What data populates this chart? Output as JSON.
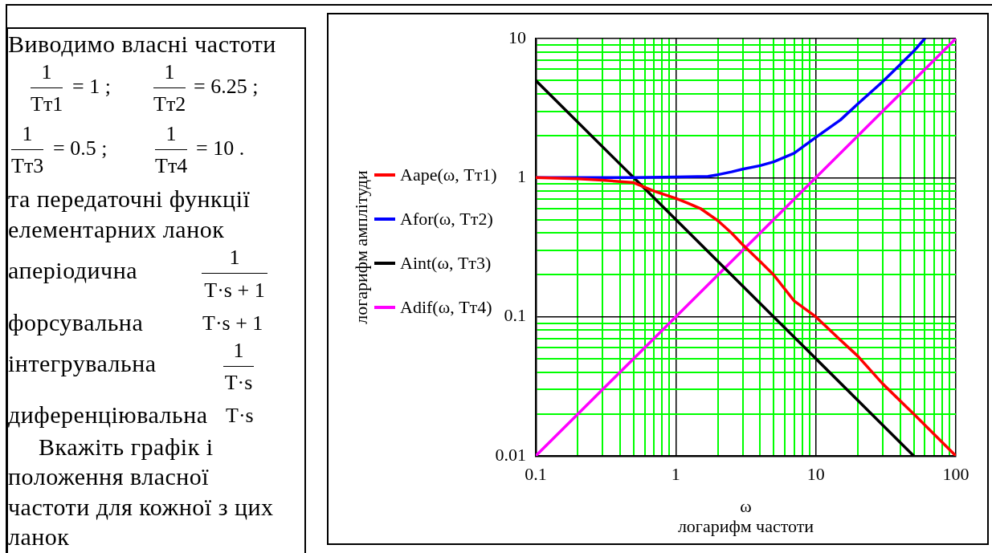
{
  "chart_data": [
    {
      "type": "other",
      "annotations": [
        "Виводимо власні частоти",
        "1",
        "Tт1",
        "= 1 ;",
        "1",
        "Tт2",
        "= 6.25 ;",
        "1",
        "Tт3",
        "= 0.5 ;",
        "1",
        "Tт4",
        "= 10 .",
        "та передаточні функції елементарних ланок",
        "аперіодична",
        "1",
        "T·s + 1",
        "форсувальна",
        "T·s + 1",
        "інтегрувальна",
        "1",
        "T·s",
        "диференціювальна",
        "T·s",
        "Вкажіть графік і положення власної частоти для кожної з цих ланок"
      ]
    },
    {
      "type": "line",
      "xlabel": "ω\nлогарифм частоти",
      "ylabel": "логарифм амплітуди",
      "log": "xy",
      "xlim": [
        0.1,
        100
      ],
      "ylim": [
        0.01,
        10
      ],
      "xticks": [
        0.1,
        {
          "value": 0.2,
          "label": null
        },
        {
          "value": 0.3,
          "label": null
        },
        {
          "value": 0.4,
          "label": null
        },
        {
          "value": 0.5,
          "label": null
        },
        {
          "value": 0.6,
          "label": null
        },
        {
          "value": 0.7,
          "label": null
        },
        {
          "value": 0.8,
          "label": null
        },
        {
          "value": 0.9,
          "label": null
        },
        1,
        {
          "value": 2,
          "label": null
        },
        {
          "value": 3,
          "label": null
        },
        {
          "value": 4,
          "label": null
        },
        {
          "value": 5,
          "label": null
        },
        {
          "value": 6,
          "label": null
        },
        {
          "value": 7,
          "label": null
        },
        {
          "value": 8,
          "label": null
        },
        {
          "value": 9,
          "label": null
        },
        10,
        {
          "value": 20,
          "label": null
        },
        {
          "value": 30,
          "label": null
        },
        {
          "value": 40,
          "label": null
        },
        {
          "value": 50,
          "label": null
        },
        {
          "value": 60,
          "label": null
        },
        {
          "value": 70,
          "label": null
        },
        {
          "value": 80,
          "label": null
        },
        {
          "value": 90,
          "label": null
        },
        100
      ],
      "yticks": [
        0.01,
        {
          "value": 0.02,
          "label": null
        },
        {
          "value": 0.03,
          "label": null
        },
        {
          "value": 0.04,
          "label": null
        },
        {
          "value": 0.05,
          "label": null
        },
        {
          "value": 0.06,
          "label": null
        },
        {
          "value": 0.07,
          "label": null
        },
        {
          "value": 0.08,
          "label": null
        },
        {
          "value": 0.09,
          "label": null
        },
        0.1,
        {
          "value": 0.2,
          "label": null
        },
        {
          "value": 0.3,
          "label": null
        },
        {
          "value": 0.4,
          "label": null
        },
        {
          "value": 0.5,
          "label": null
        },
        {
          "value": 0.6,
          "label": null
        },
        {
          "value": 0.7,
          "label": null
        },
        {
          "value": 0.8,
          "label": null
        },
        {
          "value": 0.9,
          "label": null
        },
        1,
        {
          "value": 2,
          "label": null
        },
        {
          "value": 3,
          "label": null
        },
        {
          "value": 4,
          "label": null
        },
        {
          "value": 5,
          "label": null
        },
        {
          "value": 6,
          "label": null
        },
        {
          "value": 7,
          "label": null
        },
        {
          "value": 8,
          "label": null
        },
        {
          "value": 9,
          "label": null
        },
        10
      ],
      "grid": true,
      "legend": "left",
      "marker": "none",
      "series": [
        {
          "name": "Aape(ω, Tт1)",
          "color": "#ff0000",
          "x": [
            0.1,
            0.2,
            0.3,
            0.5,
            0.7,
            1,
            1.2,
            1.5,
            2,
            2.5,
            3,
            4,
            5,
            7,
            10,
            15,
            20,
            30,
            50,
            100
          ],
          "values": [
            1,
            0.98,
            0.96,
            0.92,
            0.8,
            0.71,
            0.66,
            0.6,
            0.49,
            0.4,
            0.33,
            0.25,
            0.2,
            0.13,
            0.1,
            0.068,
            0.052,
            0.033,
            0.02,
            0.01
          ]
        },
        {
          "name": "Afor(ω, Tт2)",
          "color": "#0000ff",
          "x": [
            0.1,
            0.5,
            1,
            1.7,
            2,
            2.5,
            3,
            4,
            5,
            7,
            10,
            15,
            20,
            30,
            40,
            50,
            60
          ],
          "values": [
            1,
            1,
            1.01,
            1.02,
            1.05,
            1.1,
            1.15,
            1.22,
            1.3,
            1.5,
            1.95,
            2.6,
            3.4,
            4.9,
            6.5,
            8.1,
            10
          ]
        },
        {
          "name": "Aint(ω, Tт3)",
          "color": "#000000",
          "x": [
            0.1,
            0.5,
            1,
            5,
            10,
            50
          ],
          "values": [
            5,
            1,
            0.5,
            0.1,
            0.05,
            0.01
          ]
        },
        {
          "name": "Adif(ω, Tт4)",
          "color": "#ff00ff",
          "x": [
            0.1,
            1,
            10,
            100
          ],
          "values": [
            0.01,
            0.1,
            1,
            10
          ]
        }
      ]
    }
  ]
}
